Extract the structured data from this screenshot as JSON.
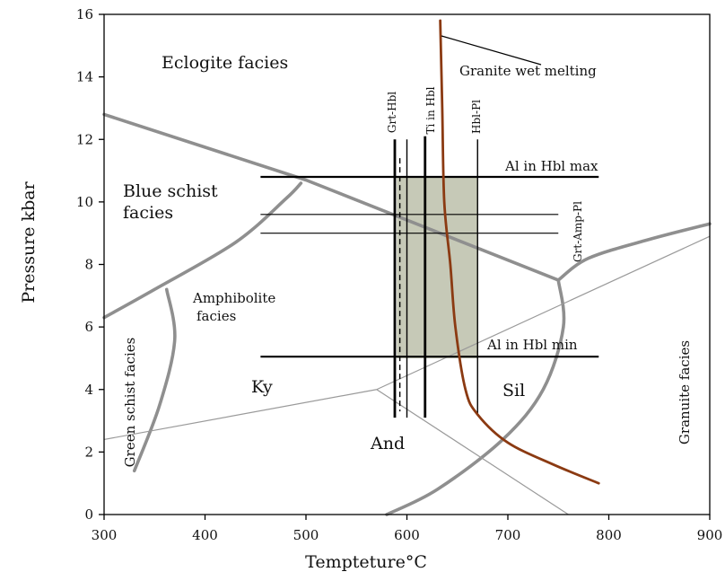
{
  "chart_data": {
    "type": "line",
    "title": "",
    "xlabel": "Tempteture°C",
    "ylabel": "Pressure kbar",
    "xlim": [
      300,
      900
    ],
    "ylim": [
      0,
      16
    ],
    "xticks": [
      "300",
      "400",
      "500",
      "600",
      "700",
      "800",
      "900"
    ],
    "yticks": [
      "0",
      "2",
      "4",
      "6",
      "8",
      "10",
      "12",
      "14",
      "16"
    ],
    "grid": false,
    "facies_boundaries": [
      {
        "points": [
          [
            300,
            12.8
          ],
          [
            500,
            10.7
          ],
          [
            750,
            7.5
          ]
        ]
      },
      {
        "points": [
          [
            300,
            6.3
          ],
          [
            350,
            7.2
          ],
          [
            430,
            8.7
          ],
          [
            480,
            10.1
          ],
          [
            495,
            10.6
          ]
        ]
      },
      {
        "points": [
          [
            330,
            1.4
          ],
          [
            355,
            3.5
          ],
          [
            370,
            5.6
          ],
          [
            362,
            7.2
          ]
        ]
      },
      {
        "points": [
          [
            750,
            7.5
          ],
          [
            780,
            8.2
          ],
          [
            840,
            8.8
          ],
          [
            900,
            9.3
          ]
        ]
      },
      {
        "points": [
          [
            750,
            7.5
          ],
          [
            755,
            6.0
          ],
          [
            735,
            4.0
          ],
          [
            695,
            2.4
          ],
          [
            630,
            0.8
          ],
          [
            580,
            0
          ]
        ]
      }
    ],
    "aluminosilicate": [
      {
        "points": [
          [
            300,
            2.4
          ],
          [
            570,
            4.0
          ]
        ]
      },
      {
        "points": [
          [
            570,
            4.0
          ],
          [
            900,
            8.9
          ]
        ]
      },
      {
        "points": [
          [
            570,
            4.0
          ],
          [
            760,
            0
          ]
        ]
      }
    ],
    "granite_wet_melting": {
      "color": "#8b3a12",
      "points": [
        [
          633,
          15.8
        ],
        [
          635,
          13.0
        ],
        [
          637,
          10.0
        ],
        [
          643,
          8.0
        ],
        [
          648,
          6.0
        ],
        [
          658,
          4.0
        ],
        [
          670,
          3.2
        ],
        [
          700,
          2.3
        ],
        [
          745,
          1.6
        ],
        [
          790,
          1.0
        ]
      ]
    },
    "shaded_region": {
      "x": [
        590,
        670
      ],
      "y": [
        5.0,
        10.8
      ],
      "color": "#c6c9b7"
    },
    "thermometers": [
      {
        "label": "Grt-Hbl",
        "x": 588,
        "y": [
          3.1,
          12.0
        ]
      },
      {
        "label": "",
        "x": 593,
        "y": [
          3.3,
          11.4
        ],
        "dashed": true
      },
      {
        "label": "Ti in Hbl",
        "x": 618,
        "y": [
          3.1,
          12.1
        ]
      },
      {
        "label": "Hbl-Pl",
        "x": 670,
        "y": [
          3.2,
          12.0
        ]
      },
      {
        "x": 600,
        "y": [
          3.1,
          12.0
        ]
      }
    ],
    "barometers": [
      {
        "label": "Al in Hbl max",
        "y": 10.8,
        "x": [
          455,
          790
        ]
      },
      {
        "label": "Al in Hbl min",
        "y": 5.05,
        "x": [
          455,
          790
        ]
      },
      {
        "label": "",
        "y": 9.6,
        "x": [
          455,
          750
        ]
      },
      {
        "label": "",
        "y": 9.0,
        "x": [
          455,
          750
        ]
      }
    ],
    "grt_amp_pl_label": "Grt-Amp-Pl",
    "annotations": {
      "eclogite": "Eclogite facies",
      "granite_wet_melting": "Granite wet melting",
      "blue_schist_1": "Blue schist",
      "blue_schist_2": "facies",
      "amphibolite_1": "Amphibolite",
      "amphibolite_2": "facies",
      "green_schist": "Green schist facies",
      "granulite": "Granuite facies",
      "ky": "Ky",
      "sil": "Sil",
      "and": "And"
    },
    "colors": {
      "facies_boundary": "#8f8f8f",
      "aluminosilicate": "#9a9a9a",
      "black": "#000000"
    }
  }
}
